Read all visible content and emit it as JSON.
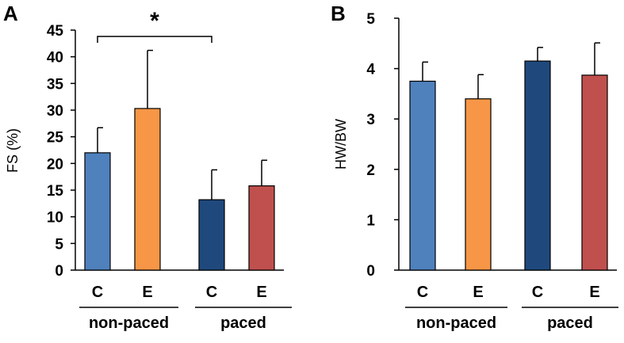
{
  "chart_data": [
    {
      "type": "bar",
      "panel": "A",
      "ylabel": "FS (%)",
      "ylim": [
        0,
        45
      ],
      "yticks": [
        0,
        5,
        10,
        15,
        20,
        25,
        30,
        35,
        40,
        45
      ],
      "categories": [
        "C",
        "E",
        "C",
        "E"
      ],
      "groups": [
        {
          "label": "non-paced",
          "categories": [
            0,
            1
          ]
        },
        {
          "label": "paced",
          "categories": [
            2,
            3
          ]
        }
      ],
      "values": [
        22,
        30.3,
        13.2,
        15.8
      ],
      "errors": [
        4.7,
        10.9,
        5.6,
        4.8
      ],
      "colors": [
        "#4f81bd",
        "#f79646",
        "#1f497d",
        "#c0504d"
      ],
      "annotations": [
        {
          "text": "*",
          "from": 0,
          "to": 2
        }
      ]
    },
    {
      "type": "bar",
      "panel": "B",
      "ylabel": "HW/BW",
      "ylim": [
        0,
        5
      ],
      "yticks": [
        0,
        1,
        2,
        3,
        4,
        5
      ],
      "categories": [
        "C",
        "E",
        "C",
        "E"
      ],
      "groups": [
        {
          "label": "non-paced",
          "categories": [
            0,
            1
          ]
        },
        {
          "label": "paced",
          "categories": [
            2,
            3
          ]
        }
      ],
      "values": [
        3.75,
        3.4,
        4.15,
        3.87
      ],
      "errors": [
        0.38,
        0.48,
        0.27,
        0.64
      ],
      "colors": [
        "#4f81bd",
        "#f79646",
        "#1f497d",
        "#c0504d"
      ],
      "annotations": []
    }
  ]
}
